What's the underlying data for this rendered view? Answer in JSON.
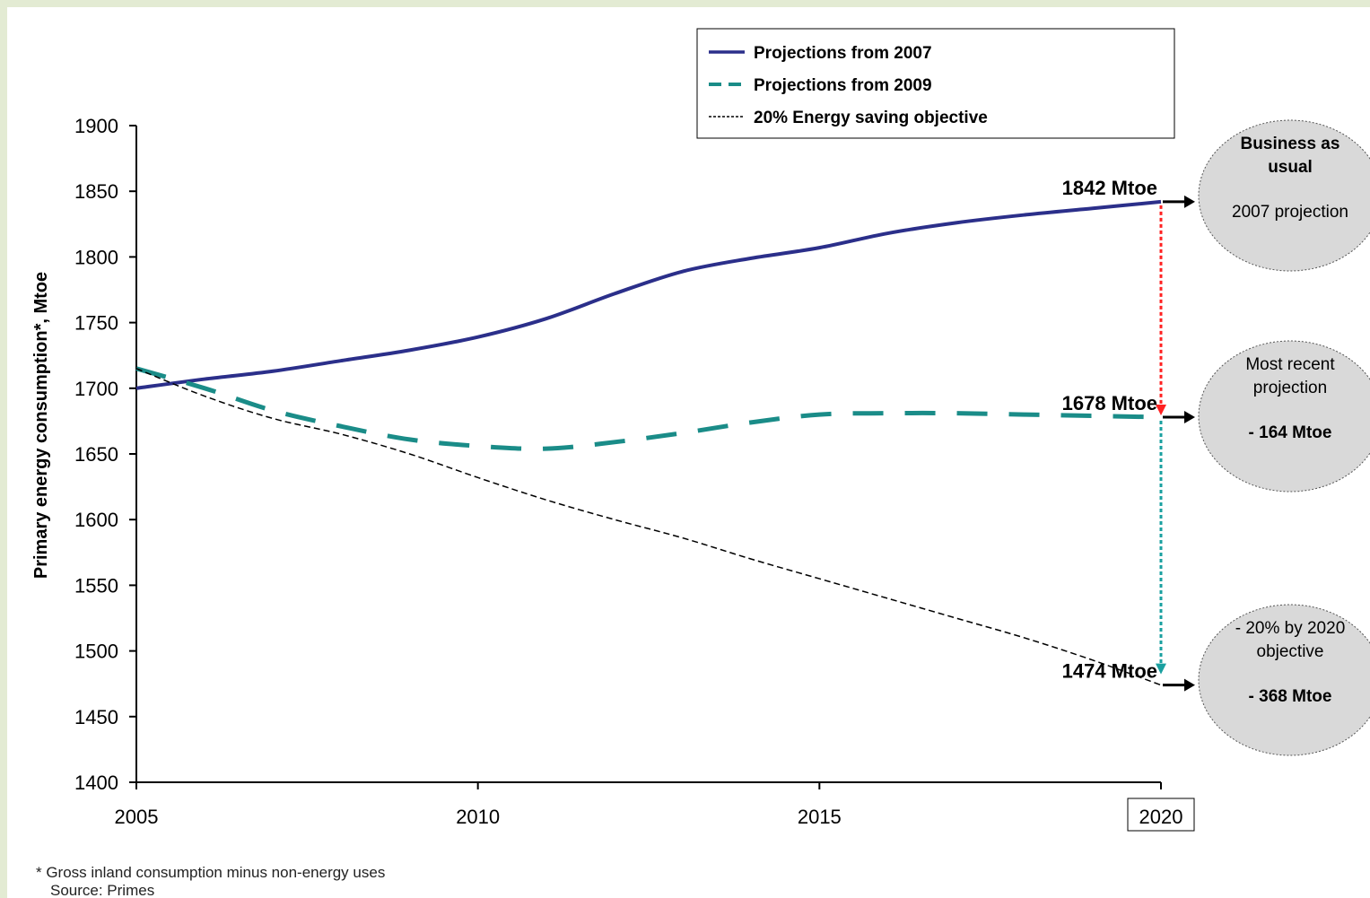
{
  "chart_data": {
    "type": "line",
    "title": "",
    "xlabel": "",
    "ylabel": "Primary energy consumption*, Mtoe",
    "xlim": [
      2005,
      2020
    ],
    "ylim": [
      1400,
      1900
    ],
    "x_ticks": [
      "2005",
      "2010",
      "2015",
      "2020"
    ],
    "y_ticks": [
      "1400",
      "1450",
      "1500",
      "1550",
      "1600",
      "1650",
      "1700",
      "1750",
      "1800",
      "1850",
      "1900"
    ],
    "highlighted_tick": "2020",
    "grid": false,
    "legend_position": "top-right",
    "series": [
      {
        "name": "Projections from 2007",
        "style": "solid",
        "color": "#2b2f8a",
        "x": [
          2005,
          2006,
          2007,
          2008,
          2009,
          2010,
          2011,
          2012,
          2013,
          2014,
          2015,
          2016,
          2017,
          2018,
          2019,
          2020
        ],
        "y": [
          1700,
          1707,
          1713,
          1721,
          1729,
          1739,
          1753,
          1772,
          1789,
          1799,
          1807,
          1818,
          1826,
          1832,
          1837,
          1842
        ]
      },
      {
        "name": "Projections from 2009",
        "style": "dashed",
        "color": "#1a8c88",
        "x": [
          2005,
          2006,
          2007,
          2008,
          2009,
          2010,
          2011,
          2012,
          2013,
          2014,
          2015,
          2016,
          2017,
          2018,
          2019,
          2020
        ],
        "y": [
          1715,
          1700,
          1683,
          1671,
          1661,
          1656,
          1654,
          1659,
          1666,
          1674,
          1680,
          1681,
          1681,
          1680,
          1679,
          1678
        ]
      },
      {
        "name": "20% Energy saving objective",
        "style": "dotted",
        "color": "#000000",
        "x": [
          2005,
          2006,
          2007,
          2008,
          2009,
          2010,
          2011,
          2012,
          2013,
          2014,
          2015,
          2016,
          2017,
          2018,
          2019,
          2020
        ],
        "y": [
          1715,
          1694,
          1677,
          1665,
          1650,
          1632,
          1615,
          1600,
          1586,
          1570,
          1555,
          1540,
          1525,
          1510,
          1493,
          1474
        ]
      }
    ],
    "annotations": [
      {
        "text": "1842 Mtoe",
        "x": 2020,
        "y": 1842
      },
      {
        "text": "1678 Mtoe",
        "x": 2020,
        "y": 1678
      },
      {
        "text": "1474 Mtoe",
        "x": 2020,
        "y": 1474
      }
    ],
    "bubbles": [
      {
        "title_lines": [
          "Business as",
          "usual"
        ],
        "title_bold": true,
        "body_lines": [
          "2007 projection"
        ],
        "body_bold": false,
        "y": 1842
      },
      {
        "title_lines": [
          "Most recent",
          "projection"
        ],
        "title_bold": false,
        "body_lines": [
          "- 164 Mtoe"
        ],
        "body_bold": true,
        "y": 1678
      },
      {
        "title_lines": [
          "- 20% by 2020",
          "objective"
        ],
        "title_bold": false,
        "body_lines": [
          "- 368 Mtoe"
        ],
        "body_bold": true,
        "y": 1474
      }
    ],
    "arrow_colors": {
      "red": "#ff2020",
      "teal": "#1aa0a0"
    }
  },
  "footnotes": {
    "note": "*  Gross inland consumption minus non-energy uses",
    "source": "Source: Primes"
  }
}
